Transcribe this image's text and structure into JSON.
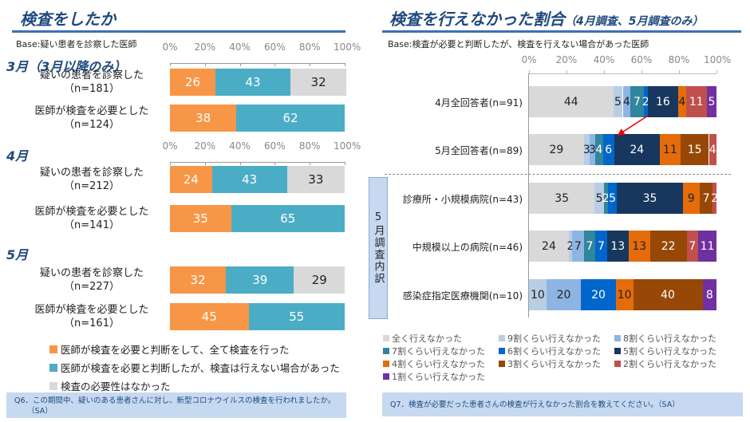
{
  "left": {
    "title": "検査をしたか",
    "base": "Base:疑い患者を診察した医師",
    "ticks": [
      "0%",
      "20%",
      "40%",
      "60%",
      "80%",
      "100%"
    ],
    "groups": [
      {
        "month": "3月（3月以降のみ）",
        "rows": [
          {
            "label": "疑いの患者を診察した",
            "n": "（n=181）",
            "values": [
              26,
              43,
              32
            ]
          },
          {
            "label": "医師が検査を必要とした",
            "n": "（n=124）",
            "values": [
              38,
              62,
              0
            ]
          }
        ]
      },
      {
        "month": "4月",
        "rows": [
          {
            "label": "疑いの患者を診察した",
            "n": "（n=212）",
            "values": [
              24,
              43,
              33
            ]
          },
          {
            "label": "医師が検査を必要とした",
            "n": "（n=141）",
            "values": [
              35,
              65,
              0
            ]
          }
        ]
      },
      {
        "month": "5月",
        "rows": [
          {
            "label": "疑いの患者を診察した",
            "n": "（n=227）",
            "values": [
              32,
              39,
              29
            ]
          },
          {
            "label": "医師が検査を必要とした",
            "n": "（n=161）",
            "values": [
              45,
              55,
              0
            ]
          }
        ]
      }
    ],
    "legend": [
      "医師が検査を必要と判断をして、全て検査を行った",
      "医師が検査を必要と判断したが、検査は行えない場合があった",
      "検査の必要性はなかった"
    ],
    "colors": [
      "#F79646",
      "#4BACC6",
      "#D9D9D9"
    ],
    "note": "Q6．この期間中、疑いのある患者さんに対し、新型コロナウイルスの検査を行われましたか。",
    "note2": "（SA）"
  },
  "right": {
    "title": "検査を行えなかった割合",
    "subtitle": "（4月調査、5月調査のみ）",
    "base": "Base:検査が必要と判断したが、検査を行えない場合があった医師",
    "ticks": [
      "0%",
      "20%",
      "40%",
      "60%",
      "80%",
      "100%"
    ],
    "side_label": "5月調査内訳",
    "categories": [
      "4月全回答者(n=91)",
      "5月全回答者(n=89)",
      "診療所・小規模病院(n=43)",
      "中規模以上の病院(n=46)",
      "感染症指定医療機関(n=10)"
    ],
    "series": [
      "全く行えなかった",
      "9割くらい行えなかった",
      "8割くらい行えなかった",
      "7割くらい行えなかった",
      "6割くらい行えなかった",
      "5割くらい行えなかった",
      "4割くらい行えなかった",
      "3割くらい行えなかった",
      "2割くらい行えなかった",
      "1割くらい行えなかった"
    ],
    "colors": [
      "#D9D9D9",
      "#B9CDE5",
      "#8EB4E3",
      "#31859C",
      "#0066CC",
      "#17375E",
      "#E46C0A",
      "#974806",
      "#C0504D",
      "#7030A0"
    ],
    "values": [
      [
        44,
        5,
        4,
        7,
        2,
        16,
        4,
        0,
        11,
        5
      ],
      [
        29,
        3,
        3,
        4,
        6,
        24,
        11,
        15,
        4,
        0
      ],
      [
        35,
        5,
        0,
        2,
        5,
        35,
        9,
        7,
        2,
        0
      ],
      [
        24,
        2,
        7,
        7,
        7,
        13,
        13,
        22,
        7,
        11
      ],
      [
        0,
        10,
        20,
        0,
        20,
        0,
        10,
        40,
        0,
        8
      ]
    ],
    "note": "Q7．検査が必要だった患者さんの検査が行えなかった割合を教えてください。（SA）"
  }
}
